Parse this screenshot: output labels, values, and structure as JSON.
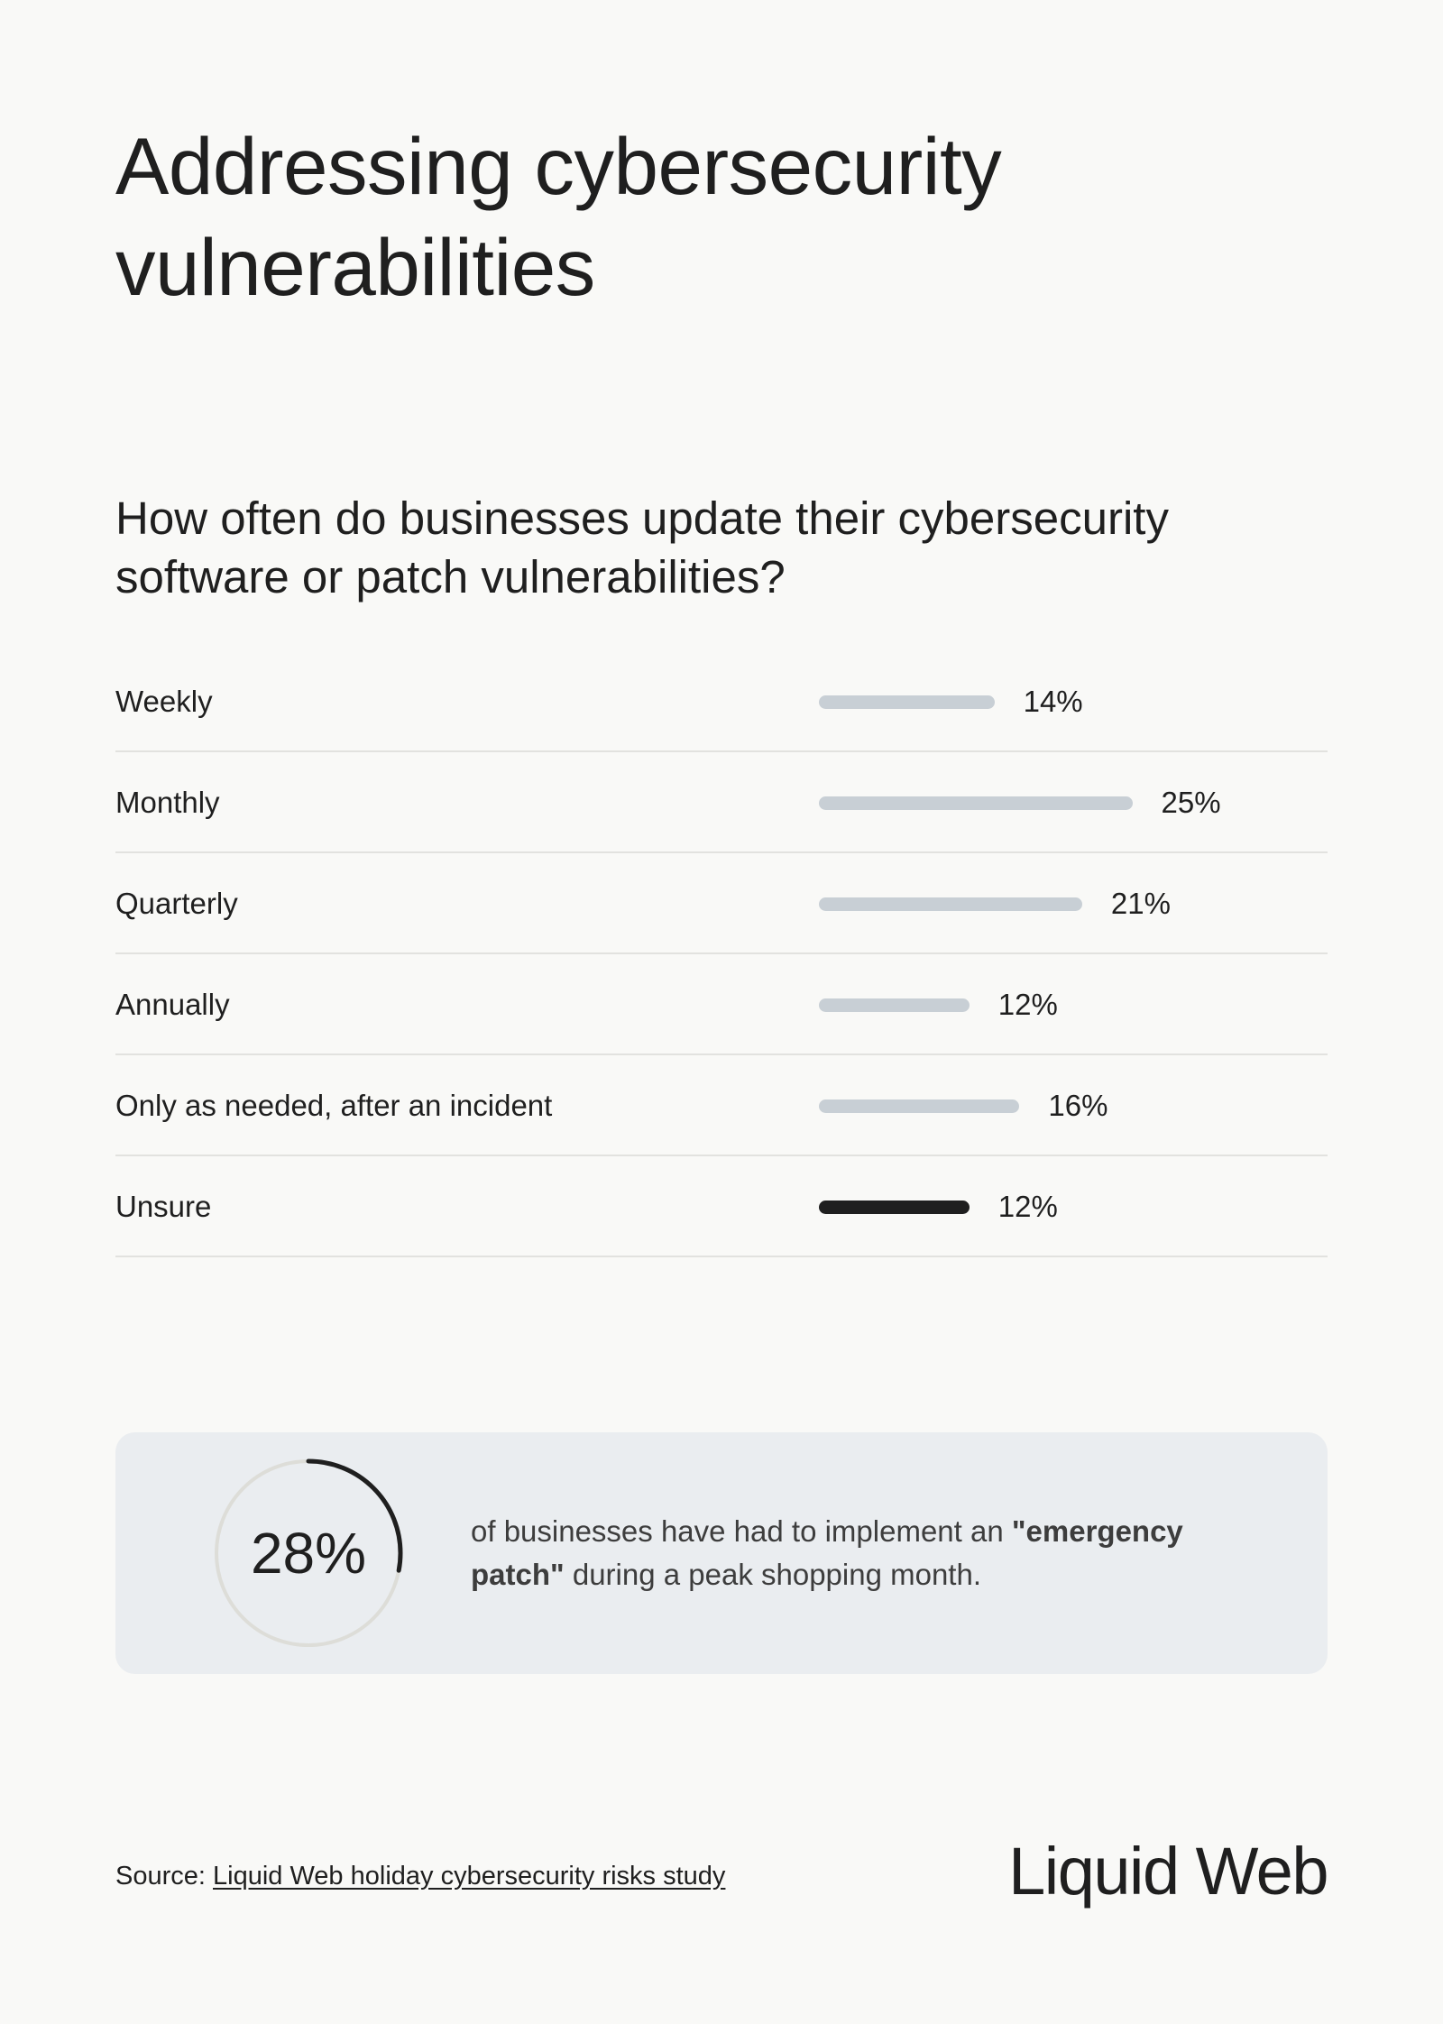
{
  "title": "Addressing cybersecurity vulnerabilities",
  "question": "How often do businesses update their cybersecurity software or patch vulnerabilities?",
  "chart_data": {
    "type": "bar",
    "orientation": "horizontal",
    "title": "How often do businesses update their cybersecurity software or patch vulnerabilities?",
    "categories": [
      "Weekly",
      "Monthly",
      "Quarterly",
      "Annually",
      "Only as needed, after an incident",
      "Unsure"
    ],
    "values": [
      14,
      25,
      21,
      12,
      16,
      12
    ],
    "value_labels": [
      "14%",
      "25%",
      "21%",
      "12%",
      "16%",
      "12%"
    ],
    "highlighted": [
      "Unsure"
    ],
    "grid": false
  },
  "callout": {
    "stat": "28%",
    "stat_value": 28,
    "text_before": "of businesses have had to implement an ",
    "text_bold": "\"emergency patch\"",
    "text_after": " during a peak shopping month."
  },
  "source": {
    "prefix": "Source: ",
    "link_text": "Liquid Web holiday cybersecurity risks study"
  },
  "brand": {
    "name": "Liquid Web"
  },
  "colors": {
    "background": "#f9f9f7",
    "text": "#1f1f1f",
    "bar_default": "#c8cfd5",
    "bar_highlight": "#1f1f1f",
    "callout_background": "#eaedf0",
    "ring_track": "#ddddd8",
    "ring_fill": "#1f1f1f"
  }
}
